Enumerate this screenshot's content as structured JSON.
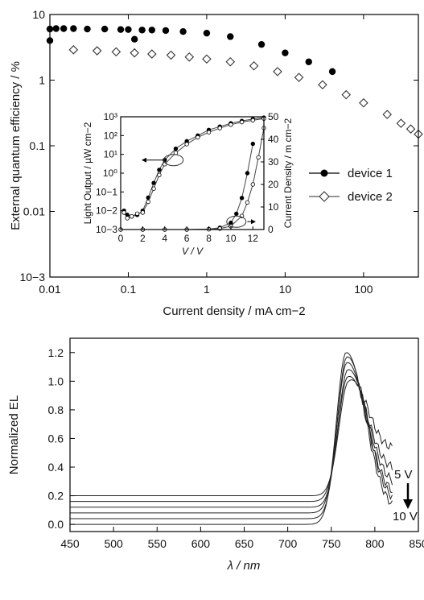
{
  "chart_data": [
    {
      "type": "scatter",
      "xlabel": "Current density / mA cm−2",
      "ylabel": "External quantum efficiency / %",
      "xscale": "log",
      "yscale": "log",
      "xlim": [
        0.01,
        500
      ],
      "ylim": [
        0.001,
        10
      ],
      "x_ticks": [
        "0.01",
        "0.1",
        "1",
        "10",
        "100"
      ],
      "y_ticks": [
        "10−3",
        "0.01",
        "0.1",
        "1",
        "10"
      ],
      "legend_position": "right",
      "series": [
        {
          "name": "device 1",
          "marker": "filled-circle",
          "x": [
            0.01,
            0.01,
            0.012,
            0.015,
            0.02,
            0.03,
            0.05,
            0.08,
            0.1,
            0.12,
            0.15,
            0.2,
            0.3,
            0.5,
            1,
            2,
            5,
            10,
            20,
            40
          ],
          "y": [
            4.0,
            6.0,
            6.1,
            6.1,
            6.1,
            6.0,
            6.0,
            5.9,
            5.9,
            4.2,
            5.8,
            5.8,
            5.7,
            5.5,
            5.2,
            4.6,
            3.5,
            2.6,
            1.9,
            1.35
          ]
        },
        {
          "name": "device 2",
          "marker": "open-diamond",
          "x": [
            0.02,
            0.04,
            0.07,
            0.12,
            0.2,
            0.35,
            0.6,
            1,
            2,
            4,
            8,
            15,
            30,
            60,
            100,
            200,
            300,
            400,
            500
          ],
          "y": [
            2.9,
            2.8,
            2.7,
            2.6,
            2.5,
            2.4,
            2.25,
            2.1,
            1.9,
            1.65,
            1.35,
            1.1,
            0.85,
            0.6,
            0.45,
            0.3,
            0.22,
            0.18,
            0.15
          ]
        }
      ]
    },
    {
      "type": "scatter",
      "role": "inset",
      "xlabel": "V / V",
      "ylabel_left": "Light Output / µW cm−2",
      "ylabel_right": "Current Density / m cm−2",
      "xlim": [
        0,
        13
      ],
      "ylim_left": [
        0.001,
        1000
      ],
      "ylim_right": [
        0,
        50
      ],
      "x_ticks": [
        "0",
        "2",
        "4",
        "6",
        "8",
        "10",
        "12"
      ],
      "y_ticks_left": [
        "10−3",
        "10−2",
        "10−1",
        "10⁰",
        "10¹",
        "10²",
        "10³"
      ],
      "y_ticks_right": [
        "0",
        "10",
        "20",
        "30",
        "40",
        "50"
      ],
      "series": [
        {
          "axis": "left",
          "marker": "filled-circle",
          "x": [
            0.3,
            0.6,
            1.0,
            1.5,
            2.0,
            2.5,
            3.0,
            3.5,
            4.0,
            5.0,
            6.0,
            7.0,
            8.0,
            9.0,
            10.0,
            11.0,
            12.0,
            13.0
          ],
          "y": [
            0.01,
            0.006,
            0.005,
            0.006,
            0.01,
            0.05,
            0.3,
            1.5,
            5,
            20,
            50,
            100,
            200,
            300,
            450,
            600,
            750,
            900
          ]
        },
        {
          "axis": "left",
          "marker": "open-circle",
          "x": [
            0.3,
            0.6,
            1.0,
            1.5,
            2.0,
            2.5,
            3.0,
            3.5,
            4.0,
            5.0,
            6.0,
            7.0,
            8.0,
            9.0,
            10.0,
            11.0,
            12.0,
            13.0
          ],
          "y": [
            0.008,
            0.004,
            0.005,
            0.007,
            0.008,
            0.03,
            0.15,
            0.8,
            3,
            12,
            35,
            80,
            150,
            250,
            380,
            520,
            650,
            800
          ]
        },
        {
          "axis": "right",
          "marker": "filled-circle",
          "x": [
            0,
            2,
            4,
            6,
            8,
            9,
            10,
            10.5,
            11,
            11.5,
            12
          ],
          "y": [
            0,
            0,
            0,
            0,
            0.2,
            0.8,
            3,
            7,
            14,
            25,
            38
          ]
        },
        {
          "axis": "right",
          "marker": "open-circle",
          "x": [
            0,
            2,
            4,
            6,
            8,
            9,
            10,
            11,
            11.5,
            12,
            12.5,
            13
          ],
          "y": [
            0,
            0,
            0,
            0,
            0.1,
            0.4,
            1.5,
            6,
            12,
            20,
            32,
            45
          ]
        }
      ]
    },
    {
      "type": "line",
      "xlabel": "λ / nm",
      "ylabel": "Normalized EL",
      "xlim": [
        450,
        850
      ],
      "ylim": [
        -0.05,
        1.3
      ],
      "x_ticks": [
        "450",
        "500",
        "550",
        "600",
        "650",
        "700",
        "750",
        "800",
        "850"
      ],
      "y_ticks": [
        "0.0",
        "0.2",
        "0.4",
        "0.6",
        "0.8",
        "1.0",
        "1.2"
      ],
      "annotations": [
        "5 V",
        "10 V"
      ],
      "series": [
        {
          "offset": 0.2,
          "peak": 1.0,
          "tail_end": 0.48,
          "peak_x": 770
        },
        {
          "offset": 0.16,
          "peak": 1.03,
          "tail_end": 0.34,
          "peak_x": 769
        },
        {
          "offset": 0.12,
          "peak": 1.08,
          "tail_end": 0.24,
          "peak_x": 769
        },
        {
          "offset": 0.08,
          "peak": 1.13,
          "tail_end": 0.17,
          "peak_x": 768
        },
        {
          "offset": 0.04,
          "peak": 1.17,
          "tail_end": 0.12,
          "peak_x": 768
        },
        {
          "offset": 0.0,
          "peak": 1.2,
          "tail_end": 0.07,
          "peak_x": 767
        }
      ]
    }
  ]
}
